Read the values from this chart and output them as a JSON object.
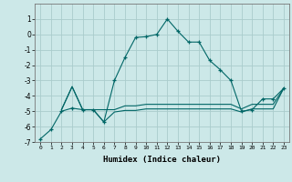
{
  "xlabel": "Humidex (Indice chaleur)",
  "bg_color": "#cce8e8",
  "grid_color": "#aacccc",
  "line_color": "#006666",
  "xlim": [
    -0.5,
    23.5
  ],
  "ylim": [
    -7,
    2
  ],
  "ytick_vals": [
    -7,
    -6,
    -5,
    -4,
    -3,
    -2,
    -1,
    0,
    1
  ],
  "ytick_labels": [
    "-7",
    "-6",
    "-5",
    "-4",
    "-3",
    "-2",
    "-1",
    "0",
    "1"
  ],
  "xtick_vals": [
    0,
    1,
    2,
    3,
    4,
    5,
    6,
    7,
    8,
    9,
    10,
    11,
    12,
    13,
    14,
    15,
    16,
    17,
    18,
    19,
    20,
    21,
    22,
    23
  ],
  "xtick_labels": [
    "0",
    "1",
    "2",
    "3",
    "4",
    "5",
    "6",
    "7",
    "8",
    "9",
    "10",
    "11",
    "12",
    "13",
    "14",
    "15",
    "16",
    "17",
    "18",
    "19",
    "20",
    "21",
    "22",
    "23"
  ],
  "line1_x": [
    0,
    1,
    2,
    3,
    4,
    5,
    6,
    7,
    8,
    9,
    10,
    11,
    12,
    13,
    14,
    15,
    16,
    17,
    18,
    19,
    20,
    21,
    22,
    23
  ],
  "line1_y": [
    -6.8,
    -6.2,
    -5.0,
    -4.8,
    -4.9,
    -4.9,
    -5.7,
    -3.0,
    -1.5,
    -0.2,
    -0.15,
    0.0,
    1.0,
    0.2,
    -0.5,
    -0.5,
    -1.7,
    -2.3,
    -3.0,
    -5.0,
    -4.9,
    -4.2,
    -4.2,
    -3.5
  ],
  "line2_x": [
    2,
    3,
    4,
    5,
    6,
    7,
    8,
    9,
    10,
    11,
    12,
    13,
    14,
    15,
    16,
    17,
    18,
    19,
    20,
    21,
    22,
    23
  ],
  "line2_y": [
    -4.9,
    -3.4,
    -4.9,
    -4.9,
    -4.9,
    -4.9,
    -4.65,
    -4.65,
    -4.55,
    -4.55,
    -4.55,
    -4.55,
    -4.55,
    -4.55,
    -4.55,
    -4.55,
    -4.55,
    -4.85,
    -4.55,
    -4.55,
    -4.55,
    -3.5
  ],
  "line3_x": [
    2,
    3,
    4,
    5,
    6,
    7,
    8,
    9,
    10,
    11,
    12,
    13,
    14,
    15,
    16,
    17,
    18,
    19,
    20,
    21,
    22,
    23
  ],
  "line3_y": [
    -4.9,
    -3.4,
    -4.9,
    -4.9,
    -5.7,
    -5.05,
    -4.95,
    -4.95,
    -4.85,
    -4.85,
    -4.85,
    -4.85,
    -4.85,
    -4.85,
    -4.85,
    -4.85,
    -4.85,
    -5.05,
    -4.85,
    -4.85,
    -4.85,
    -3.5
  ]
}
